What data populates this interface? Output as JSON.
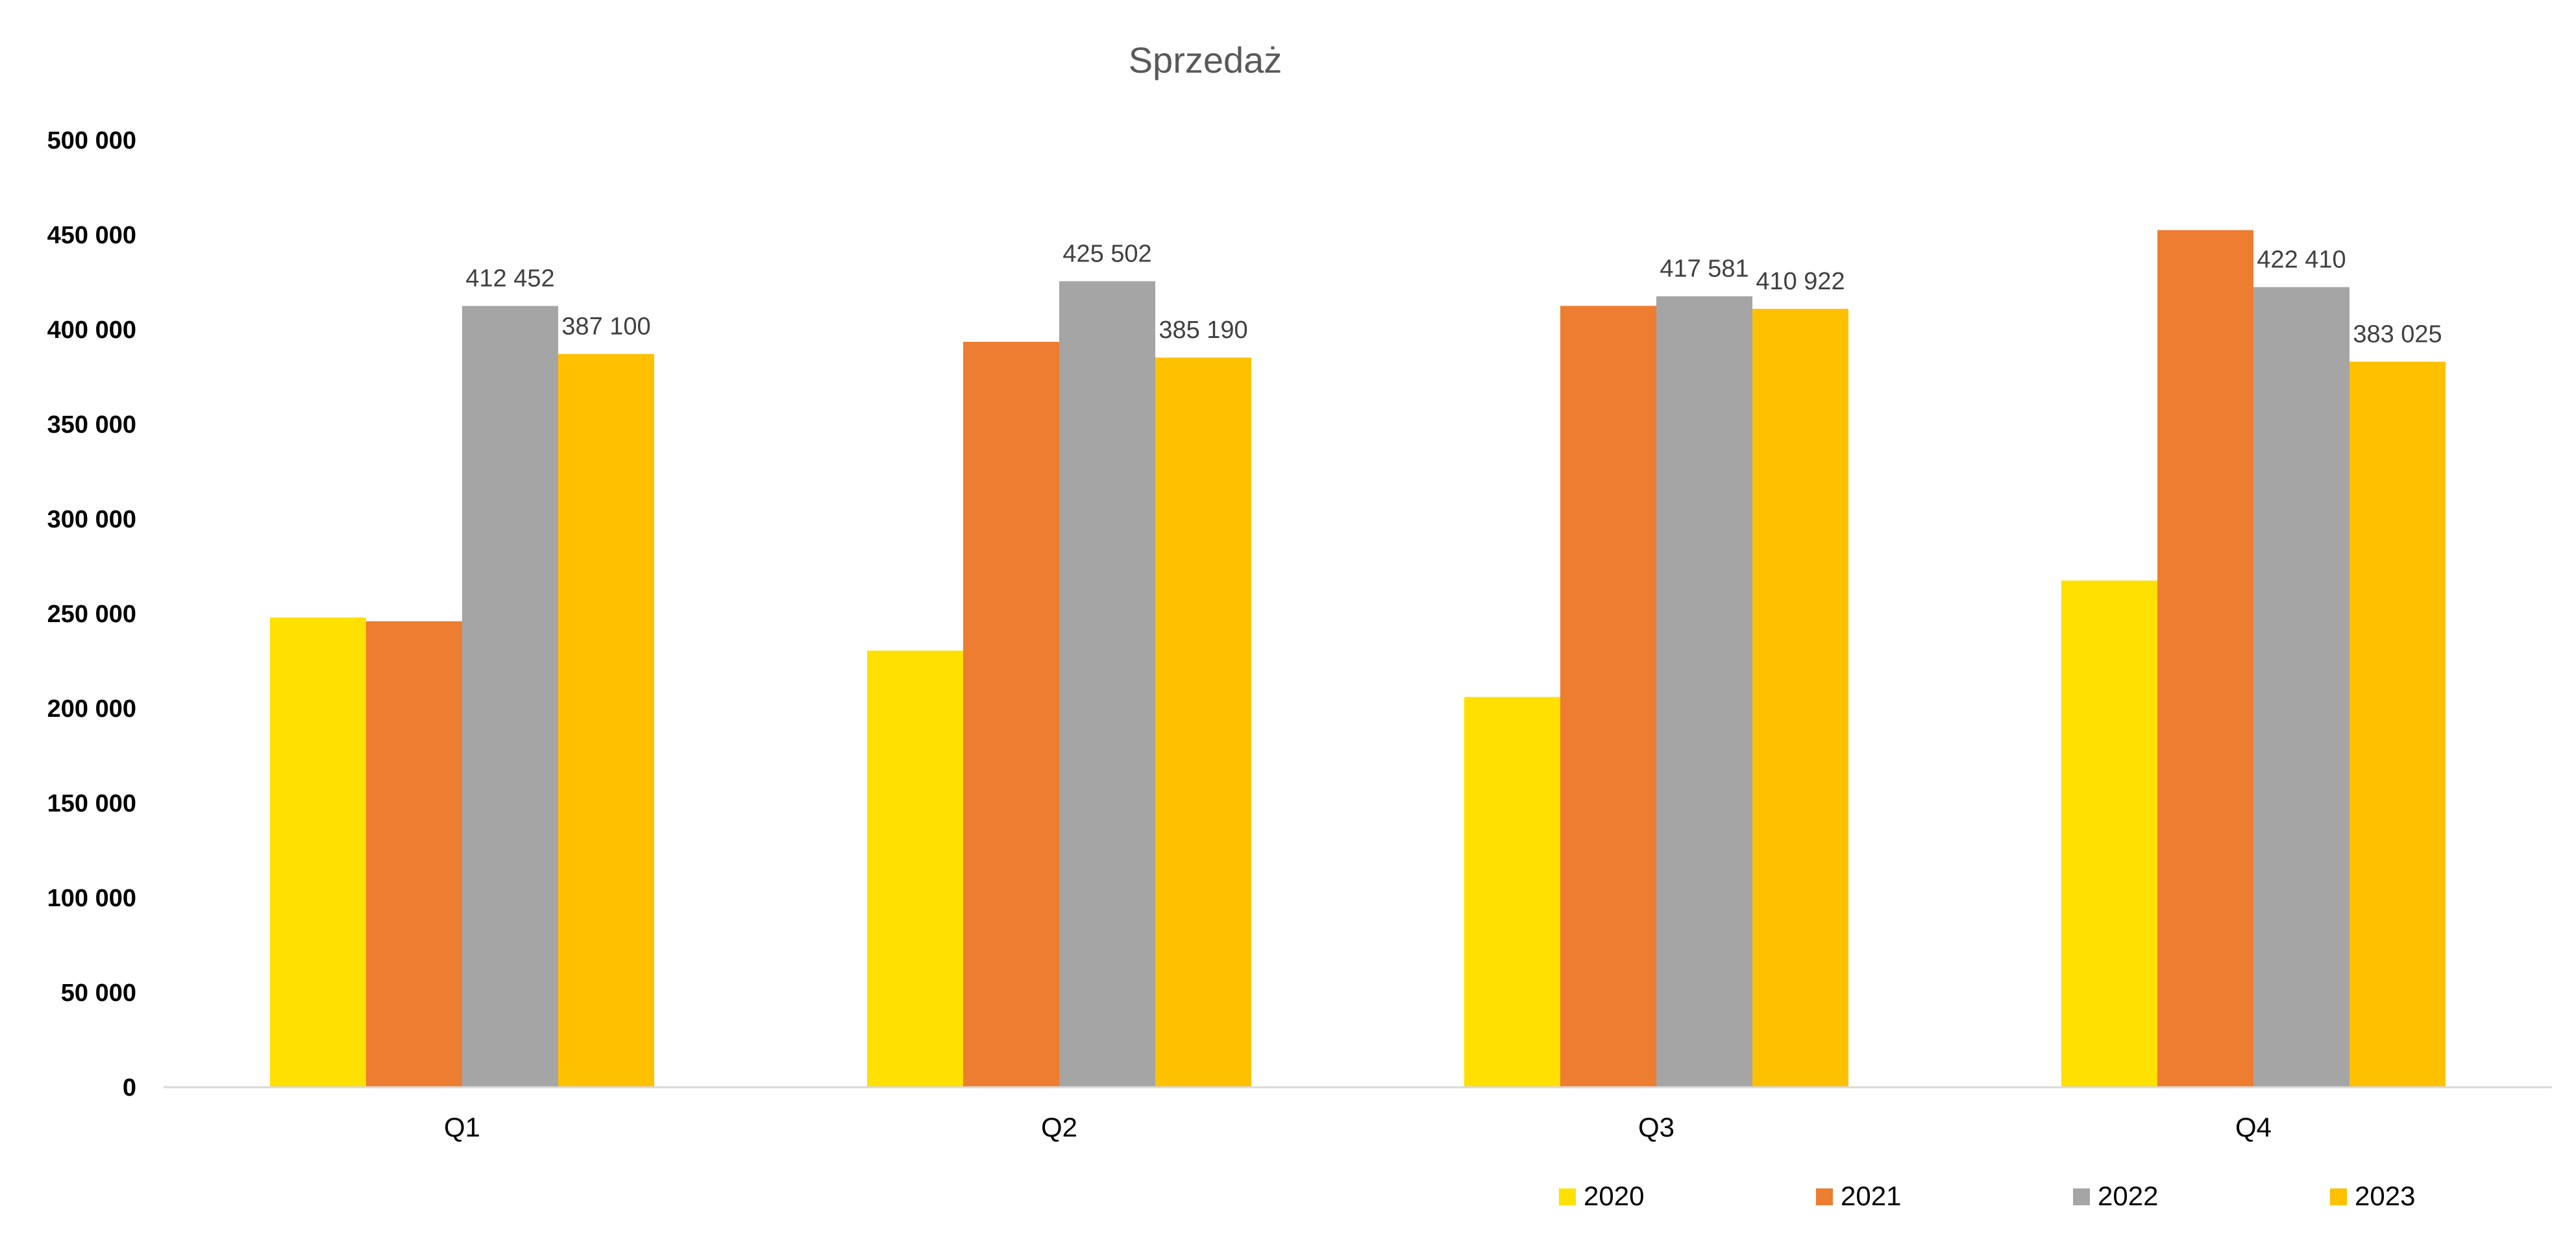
{
  "chart_data": {
    "type": "bar",
    "title": "Sprzedaż",
    "xlabel": "",
    "ylabel": "",
    "categories": [
      "Q1",
      "Q2",
      "Q3",
      "Q4"
    ],
    "ylim": [
      0,
      500000
    ],
    "yticks": [
      0,
      50000,
      100000,
      150000,
      200000,
      250000,
      300000,
      350000,
      400000,
      450000,
      500000
    ],
    "ytick_labels": [
      "0",
      "50 000",
      "100 000",
      "150 000",
      "200 000",
      "250 000",
      "300 000",
      "350 000",
      "400 000",
      "450 000",
      "500 000"
    ],
    "grid": false,
    "legend_position": "bottom-right",
    "series": [
      {
        "name": "2020",
        "color": "#FFE000",
        "values": [
          248000,
          230500,
          206000,
          267500
        ],
        "labels": [
          "",
          "",
          "",
          ""
        ]
      },
      {
        "name": "2021",
        "color": "#ED7D31",
        "values": [
          246000,
          393500,
          412500,
          452500
        ],
        "labels": [
          "",
          "",
          "",
          ""
        ]
      },
      {
        "name": "2022",
        "color": "#A5A5A5",
        "values": [
          412452,
          425502,
          417581,
          422410
        ],
        "labels": [
          "412 452",
          "425 502",
          "417 581",
          "422 410"
        ]
      },
      {
        "name": "2023",
        "color": "#FFC000",
        "values": [
          387100,
          385190,
          410922,
          383025
        ],
        "labels": [
          "387 100",
          "385 190",
          "410 922",
          "383 025"
        ]
      }
    ]
  }
}
